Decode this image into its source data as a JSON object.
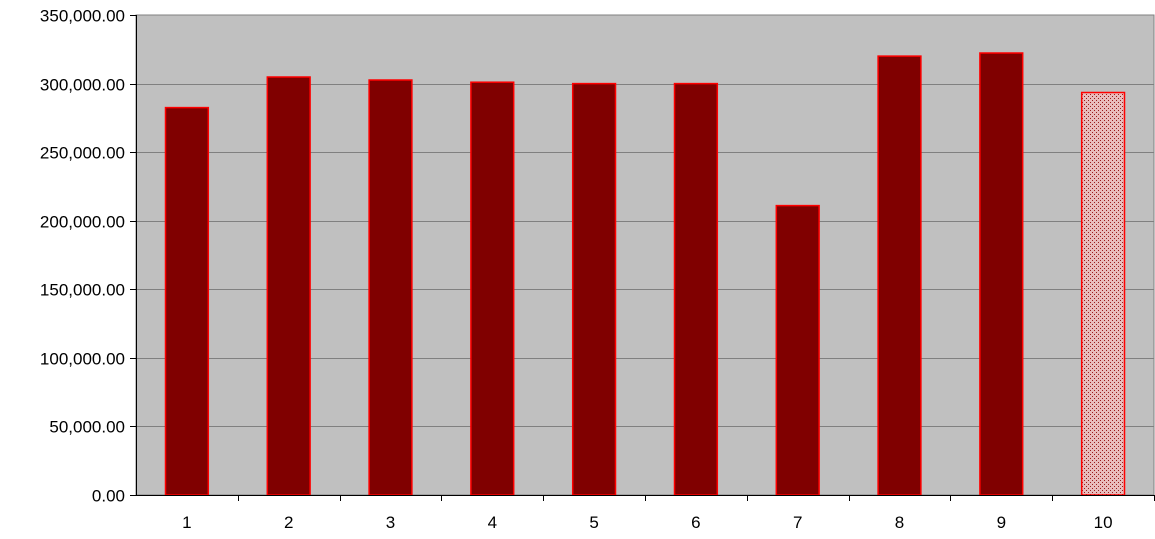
{
  "chart_data": {
    "type": "bar",
    "categories": [
      "1",
      "2",
      "3",
      "4",
      "5",
      "6",
      "7",
      "8",
      "9",
      "10"
    ],
    "values": [
      282500,
      304800,
      302600,
      301000,
      300000,
      300000,
      211000,
      320000,
      322300,
      293500
    ],
    "ylim": [
      0,
      350000
    ],
    "y_ticks": [
      "0.00",
      "50,000.00",
      "100,000.00",
      "150,000.00",
      "200,000.00",
      "250,000.00",
      "300,000.00",
      "350,000.00"
    ],
    "y_tick_values": [
      0,
      50000,
      100000,
      150000,
      200000,
      250000,
      300000,
      350000
    ],
    "grid": true,
    "legend": "none",
    "colors": {
      "plot_background": "#c0c0c0",
      "bar_fill": "#800000",
      "bar_border": "#ff0000",
      "gridline": "#808080",
      "last_bar_pattern_light": "#e8bcbc",
      "last_bar_pattern_dark": "#9a1a1a"
    },
    "patterned_bar_index": 9
  }
}
